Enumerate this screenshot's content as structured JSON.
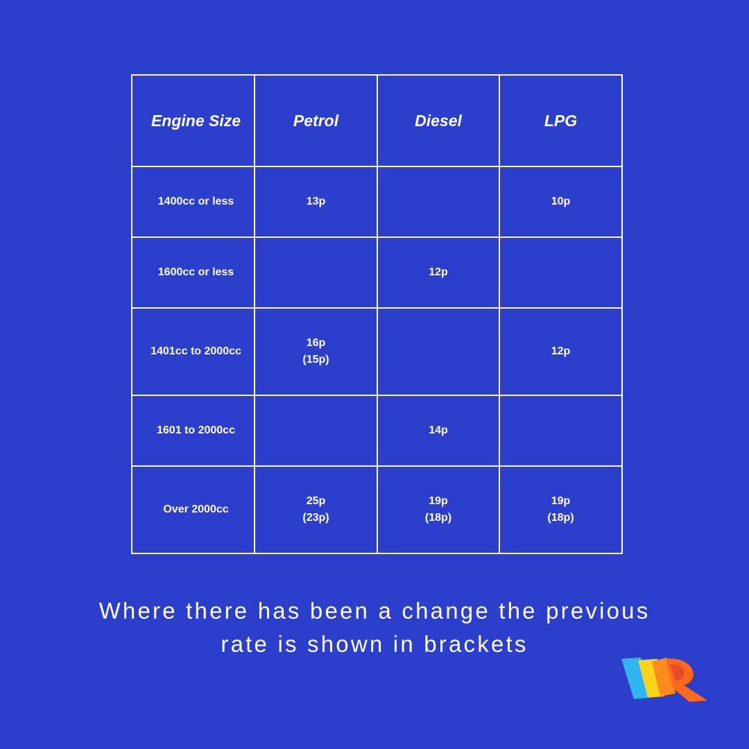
{
  "table": {
    "header": [
      "Engine Size",
      "Petrol",
      "Diesel",
      "LPG"
    ],
    "rows": [
      [
        [
          "1400cc or less"
        ],
        [
          "13p"
        ],
        null,
        [
          "10p"
        ]
      ],
      [
        [
          "1600cc or less"
        ],
        null,
        [
          "12p"
        ],
        null
      ],
      [
        [
          "1401cc to 2000cc"
        ],
        [
          "16p",
          "(15p)"
        ],
        null,
        [
          "12p"
        ]
      ],
      [
        [
          "1601 to 2000cc"
        ],
        null,
        [
          "14p"
        ],
        null
      ],
      [
        [
          "Over 2000cc"
        ],
        [
          "25p",
          "(23p)"
        ],
        [
          "19p",
          "(18p)"
        ],
        [
          "19p",
          "(18p)"
        ]
      ]
    ]
  },
  "caption": [
    "Where there has been a change the previous",
    "rate is shown in brackets"
  ]
}
